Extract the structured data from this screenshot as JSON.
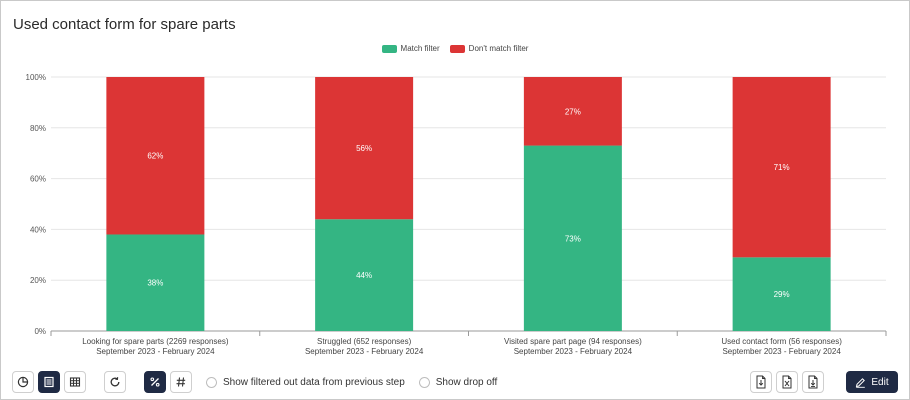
{
  "title": "Used contact form for spare parts",
  "colors": {
    "match": "#34b583",
    "nomatch": "#dc3535",
    "grid": "#e6e6e6",
    "axis": "#9a9a9a",
    "dark": "#1f2a44"
  },
  "chart_data": {
    "type": "bar",
    "stacked": true,
    "percent": true,
    "ylim": [
      0,
      100
    ],
    "yticks": [
      "0%",
      "20%",
      "40%",
      "60%",
      "80%",
      "100%"
    ],
    "legend_position": "top-center",
    "categories": [
      [
        "Looking for spare parts (2269 responses)",
        "September 2023 - February 2024"
      ],
      [
        "Struggled (652 responses)",
        "September 2023 - February 2024"
      ],
      [
        "Visited spare part page (94 responses)",
        "September 2023 - February 2024"
      ],
      [
        "Used contact form (56 responses)",
        "September 2023 - February 2024"
      ]
    ],
    "series": [
      {
        "name": "Match filter",
        "values": [
          38,
          44,
          73,
          29
        ],
        "labels": [
          "38%",
          "44%",
          "73%",
          "29%"
        ]
      },
      {
        "name": "Don't match filter",
        "values": [
          62,
          56,
          27,
          71
        ],
        "labels": [
          "62%",
          "56%",
          "27%",
          "71%"
        ]
      }
    ]
  },
  "toolbar": {
    "icons": [
      "pie-chart-icon",
      "bar-chart-icon",
      "table-icon",
      "refresh-icon",
      "percent-icon",
      "hash-icon"
    ],
    "show_filtered_label": "Show filtered out data from previous step",
    "show_dropoff_label": "Show drop off",
    "export_icons": [
      "export-pdf-icon",
      "export-excel-icon",
      "export-image-icon"
    ],
    "edit_label": "Edit"
  }
}
